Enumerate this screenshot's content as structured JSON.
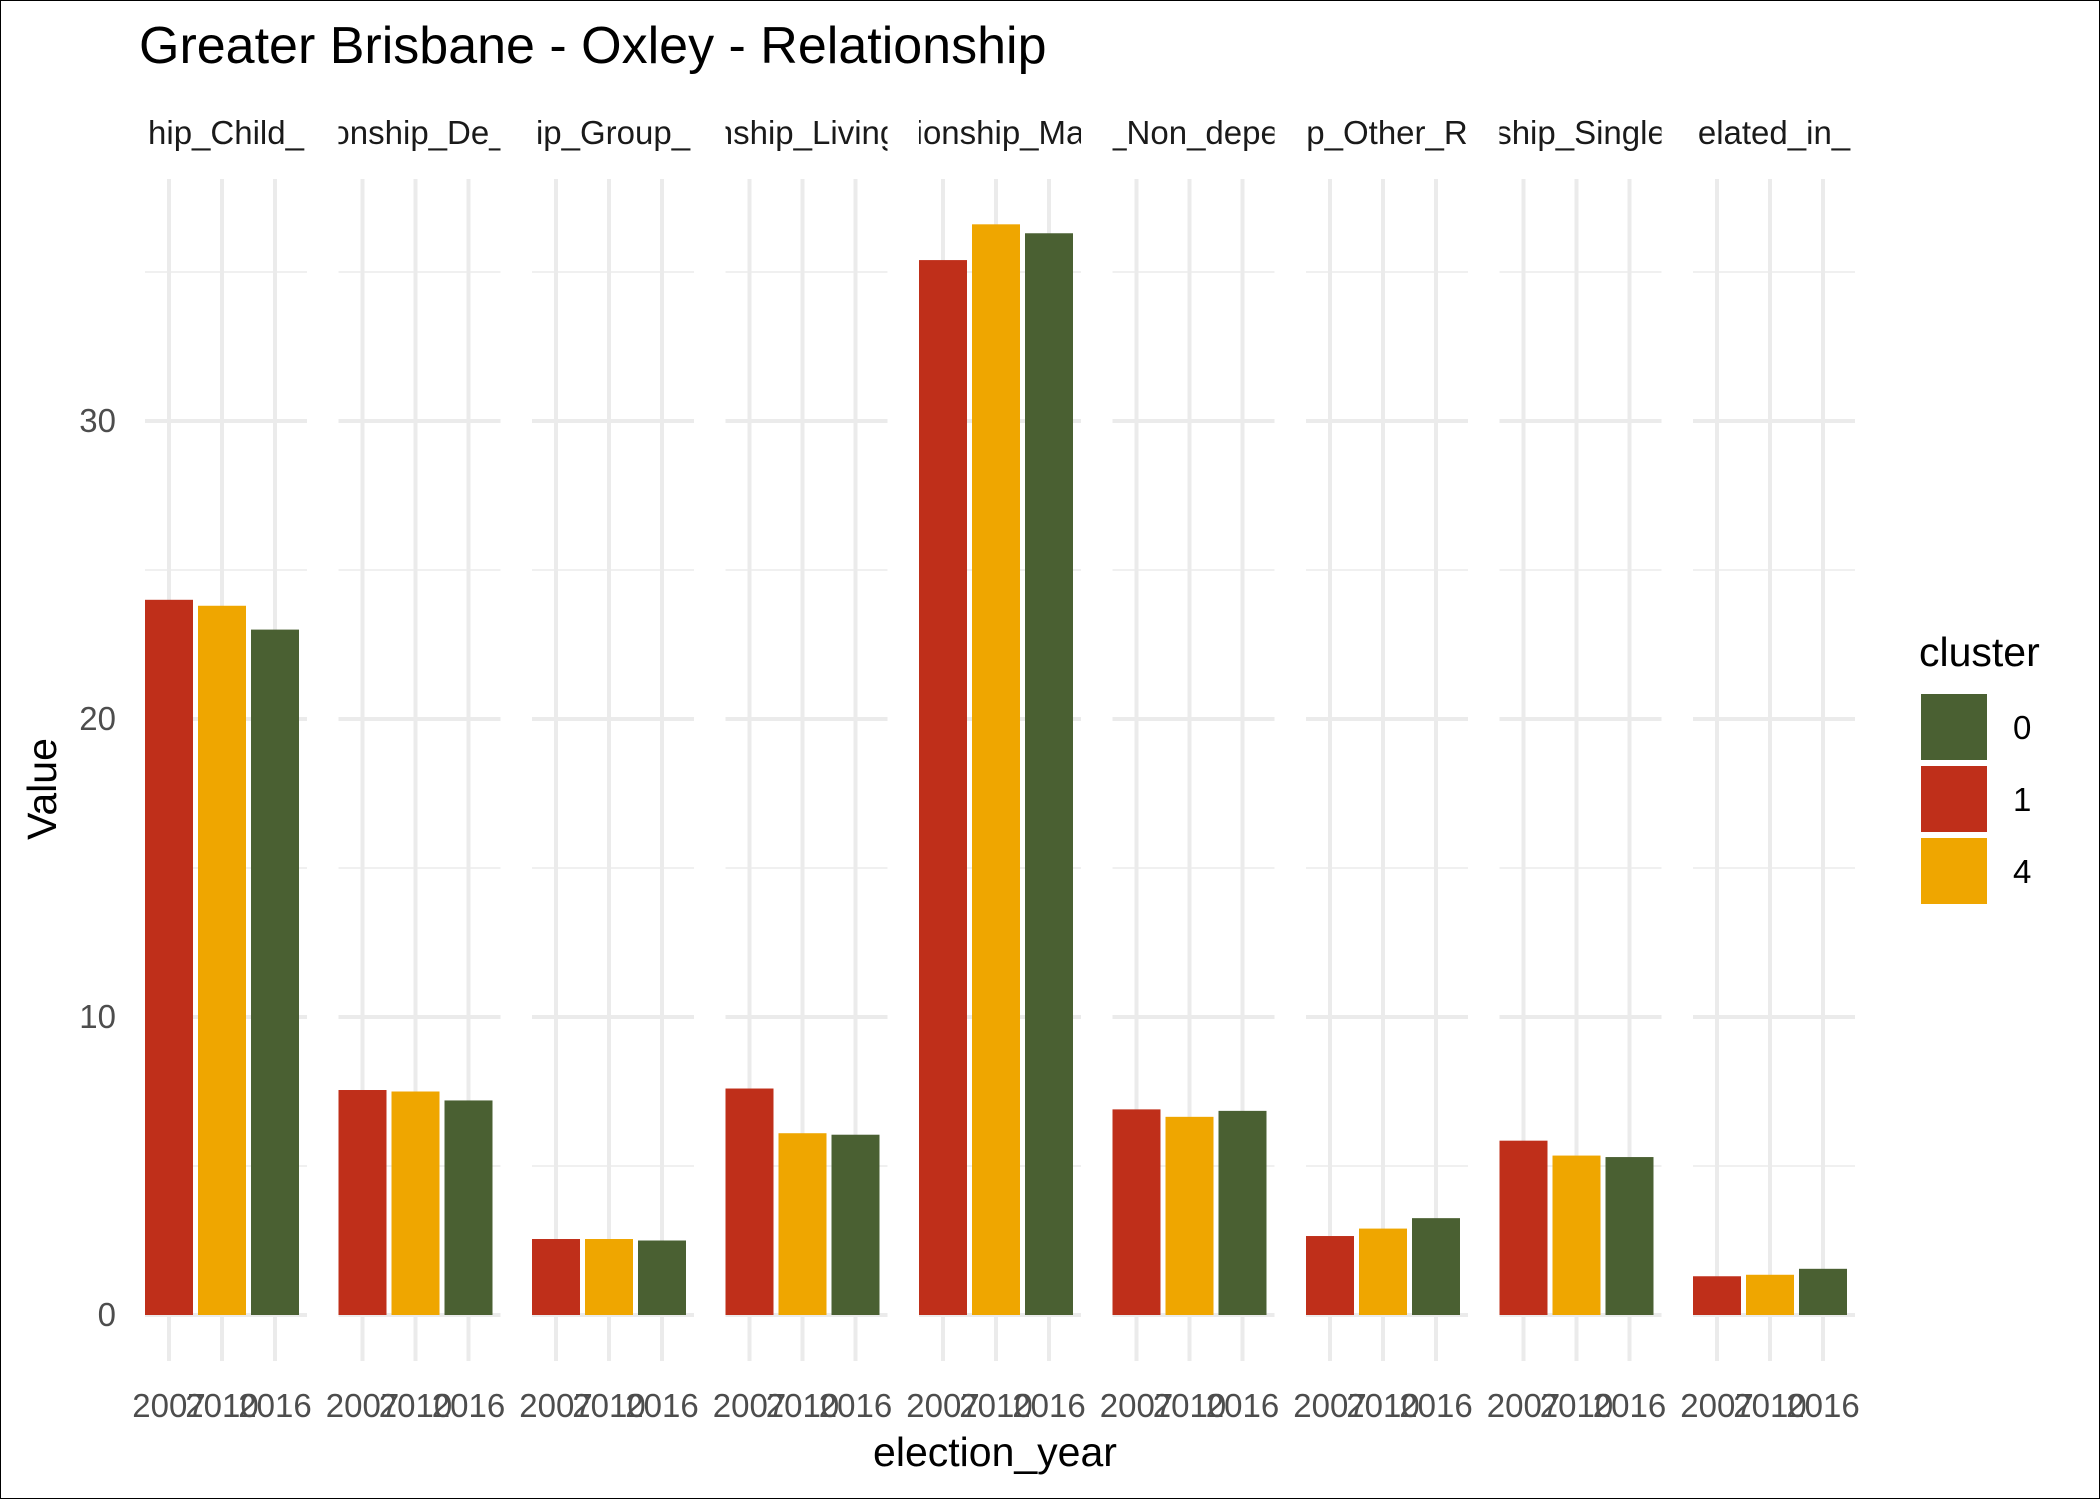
{
  "chart_data": {
    "type": "bar",
    "title": "Greater Brisbane - Oxley - Relationship",
    "xlabel": "election_year",
    "ylabel": "Value",
    "ylim": [
      0,
      37.5
    ],
    "yticks": [
      0,
      10,
      20,
      30
    ],
    "grid": true,
    "legend": {
      "title": "cluster",
      "position": "right",
      "entries": [
        {
          "label": "0",
          "color": "#4A6032"
        },
        {
          "label": "1",
          "color": "#BF2F1A"
        },
        {
          "label": "4",
          "color": "#EFA600"
        }
      ]
    },
    "x_categories": [
      "2007",
      "2010",
      "2016"
    ],
    "bar_colors": [
      "#BF2F1A",
      "#EFA600",
      "#4A6032"
    ],
    "facets": [
      {
        "label": "hip_Child_",
        "values": [
          24.0,
          23.8,
          23.0
        ]
      },
      {
        "label": "onship_De_",
        "values": [
          7.55,
          7.5,
          7.2
        ]
      },
      {
        "label": "ip_Group_",
        "values": [
          2.55,
          2.55,
          2.5
        ]
      },
      {
        "label": "nship_Living",
        "values": [
          7.6,
          6.1,
          6.05
        ]
      },
      {
        "label": "ionship_Ma",
        "values": [
          35.4,
          36.6,
          36.3
        ]
      },
      {
        "label": "_Non_depe",
        "values": [
          6.9,
          6.65,
          6.85
        ]
      },
      {
        "label": "p_Other_R",
        "values": [
          2.65,
          2.9,
          3.25
        ]
      },
      {
        "label": "ship_Single",
        "values": [
          5.85,
          5.35,
          5.3
        ]
      },
      {
        "label": "elated_in_",
        "values": [
          1.3,
          1.35,
          1.55
        ]
      }
    ]
  }
}
